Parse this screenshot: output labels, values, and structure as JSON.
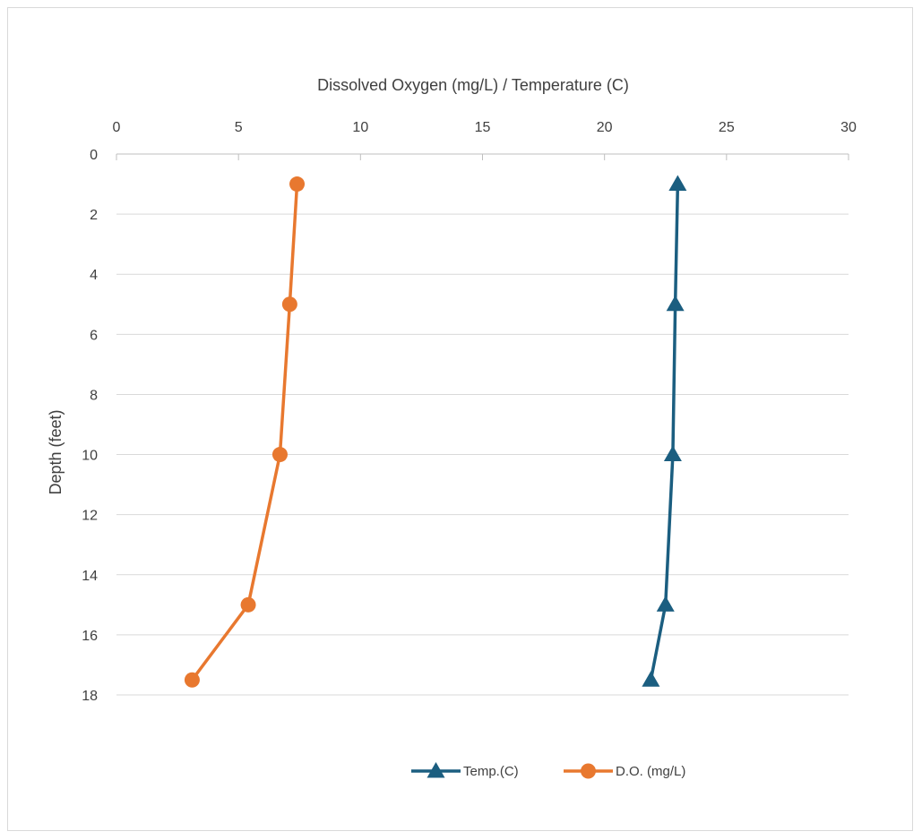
{
  "chart_data": {
    "type": "scatter",
    "xlabel": "Dissolved Oxygen (mg/L) / Temperature (C)",
    "ylabel": "Depth (feet)",
    "xlim": [
      0,
      30
    ],
    "ylim": [
      0,
      18
    ],
    "y_reversed": true,
    "x_axis_position": "top",
    "x_ticks": [
      0,
      5,
      10,
      15,
      20,
      25,
      30
    ],
    "y_ticks": [
      0,
      2,
      4,
      6,
      8,
      10,
      12,
      14,
      16,
      18
    ],
    "grid": "horizontal",
    "legend": "bottom",
    "series": [
      {
        "name": "Temp.(C)",
        "color": "#1b5e80",
        "marker": "triangle",
        "points": [
          {
            "x": 23.0,
            "y": 1
          },
          {
            "x": 22.9,
            "y": 5
          },
          {
            "x": 22.8,
            "y": 10
          },
          {
            "x": 22.5,
            "y": 15
          },
          {
            "x": 21.9,
            "y": 17.5
          }
        ]
      },
      {
        "name": "D.O. (mg/L)",
        "color": "#e8782f",
        "marker": "circle",
        "points": [
          {
            "x": 7.4,
            "y": 1
          },
          {
            "x": 7.1,
            "y": 5
          },
          {
            "x": 6.7,
            "y": 10
          },
          {
            "x": 5.4,
            "y": 15
          },
          {
            "x": 3.1,
            "y": 17.5
          }
        ]
      }
    ]
  }
}
